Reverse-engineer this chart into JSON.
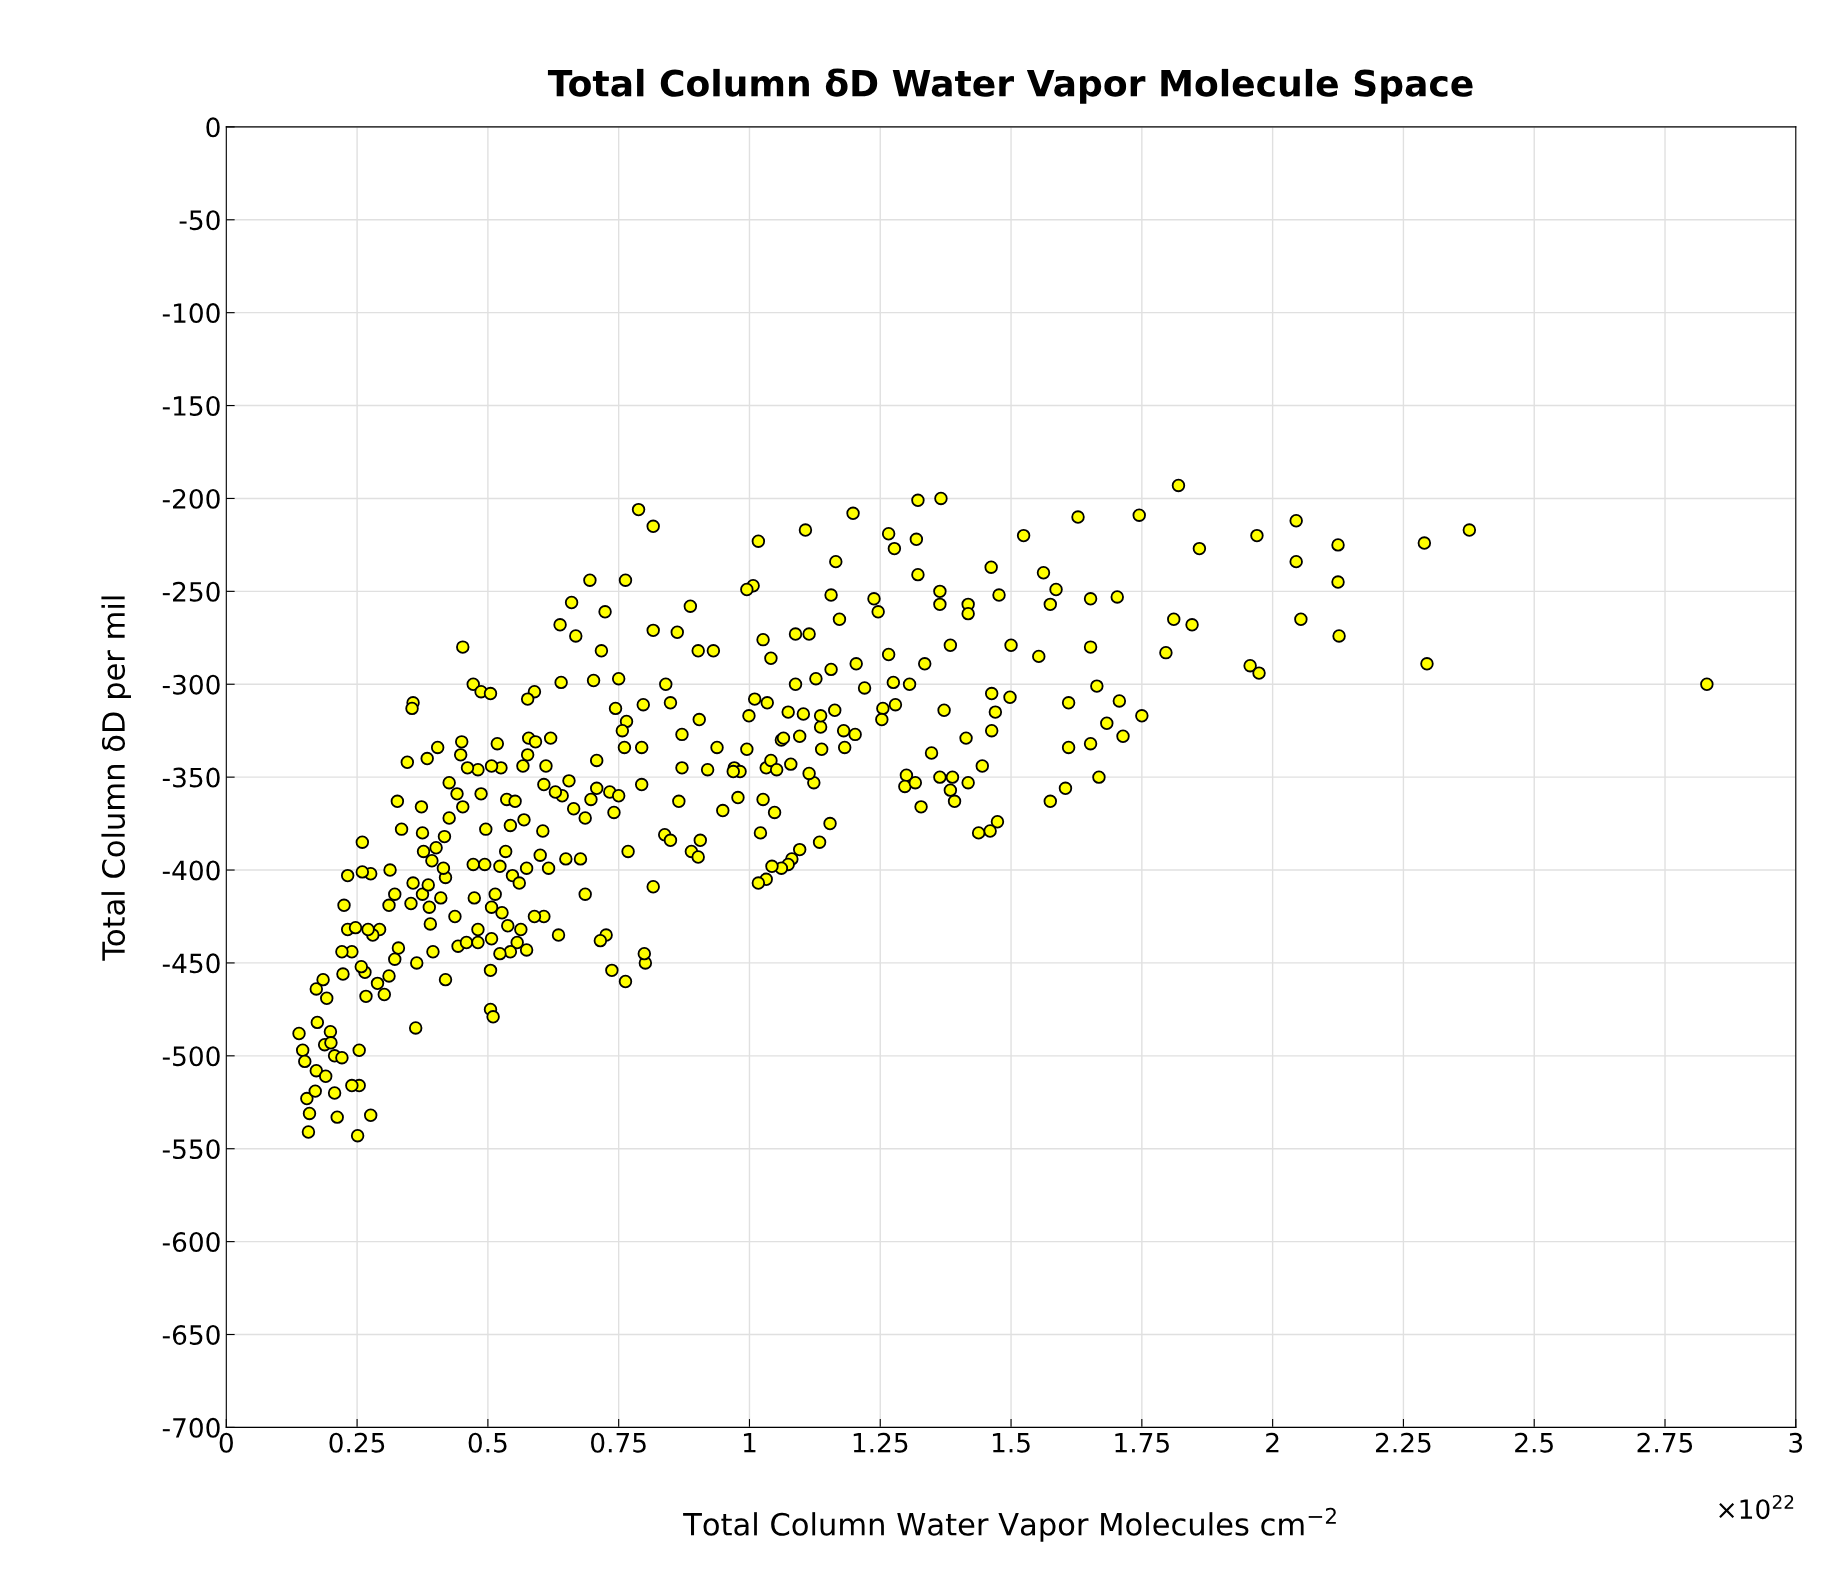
{
  "chart_data": {
    "type": "scatter",
    "title": "Total Column δD Water Vapor Molecule Space",
    "xlabel": "Total Column Water Vapor Molecules cm$^{−2}$",
    "ylabel": "Total Column δD per mil",
    "annotations": [
      "×10$^{22}$"
    ],
    "xlim": [
      0,
      3
    ],
    "ylim": [
      -700,
      0
    ],
    "xticks": [
      0,
      0.25,
      0.5,
      0.75,
      1,
      1.25,
      1.5,
      1.75,
      2,
      2.25,
      2.5,
      2.75,
      3
    ],
    "yticks": [
      -700,
      -650,
      -600,
      -550,
      -500,
      -450,
      -400,
      -350,
      -300,
      -250,
      -200,
      -150,
      -100,
      -50,
      0
    ],
    "grid": true,
    "marker": "circle",
    "series": [
      {
        "color": "#ffff00",
        "x": [
          2.83,
          2.376,
          2.29,
          2.295,
          2.125,
          2.125,
          2.127,
          2.045,
          2.045,
          2.054,
          1.97,
          1.957,
          1.974,
          1.82,
          1.86,
          1.811,
          1.846,
          1.796,
          1.745,
          1.75,
          1.703,
          1.707,
          1.714,
          1.683,
          1.628,
          1.652,
          1.652,
          1.664,
          1.61,
          1.61,
          1.652,
          1.668,
          1.604,
          1.575,
          1.562,
          1.586,
          1.575,
          1.553,
          1.524,
          1.5,
          1.498,
          1.462,
          1.477,
          1.463,
          1.47,
          1.463,
          1.474,
          1.46,
          1.438,
          1.445,
          1.418,
          1.418,
          1.414,
          1.418,
          1.392,
          1.364,
          1.364,
          1.366,
          1.322,
          1.319,
          1.322,
          1.335,
          1.372,
          1.384,
          1.364,
          1.388,
          1.384,
          1.348,
          1.328,
          1.3,
          1.297,
          1.317,
          1.266,
          1.277,
          1.266,
          1.275,
          1.306,
          1.279,
          1.255,
          1.238,
          1.246,
          1.253,
          1.22,
          1.204,
          1.198,
          1.165,
          1.156,
          1.172,
          1.156,
          1.163,
          1.18,
          1.182,
          1.138,
          1.136,
          1.154,
          1.134,
          1.123,
          1.127,
          1.107,
          1.114,
          1.088,
          1.103,
          1.096,
          1.114,
          1.096,
          1.081,
          1.074,
          1.061,
          1.088,
          1.074,
          1.061,
          1.032,
          1.043,
          1.032,
          1.017,
          1.021,
          1.017,
          1.007,
          0.995,
          1.026,
          1.041,
          1.034,
          1.01,
          0.999,
          0.971,
          0.982,
          0.995,
          0.902,
          0.931,
          0.887,
          0.904,
          0.92,
          0.889,
          0.902,
          0.906,
          0.871,
          0.865,
          0.862,
          0.84,
          0.838,
          0.849,
          0.816,
          0.801,
          0.799,
          0.788,
          0.816,
          0.816,
          0.797,
          0.794,
          0.761,
          0.75,
          0.763,
          0.765,
          0.768,
          0.763,
          0.737,
          0.726,
          0.715,
          0.741,
          0.702,
          0.695,
          0.724,
          0.717,
          0.668,
          0.66,
          0.708,
          0.686,
          0.686,
          0.677,
          0.649,
          0.635,
          0.642,
          0.64,
          0.638,
          0.62,
          0.607,
          0.589,
          0.576,
          0.6,
          0.607,
          0.589,
          0.574,
          0.556,
          0.543,
          0.523,
          0.527,
          0.507,
          0.505,
          0.505,
          0.51,
          0.452,
          0.472,
          0.487,
          0.505,
          0.518,
          0.525,
          0.357,
          0.355,
          0.346,
          0.327,
          0.335,
          0.357,
          0.375,
          0.364,
          0.362,
          0.313,
          0.293,
          0.265,
          0.267,
          0.24,
          0.232,
          0.26,
          0.276,
          0.192,
          0.172,
          0.185,
          0.157,
          0.139,
          0.146,
          0.15,
          0.154,
          0.17,
          0.172,
          0.199,
          0.207,
          0.207,
          0.212,
          0.251,
          0.276,
          0.254,
          0.254,
          0.24,
          0.221,
          0.19,
          0.188,
          0.174,
          0.159,
          0.2,
          0.223,
          0.221,
          0.232,
          0.225,
          0.247,
          0.258,
          0.28,
          0.26,
          0.271,
          0.289,
          0.302,
          0.311,
          0.322,
          0.329,
          0.311,
          0.322,
          0.353,
          0.386,
          0.395,
          0.39,
          0.41,
          0.419,
          0.437,
          0.419,
          0.443,
          0.459,
          0.481,
          0.481,
          0.472,
          0.494,
          0.496,
          0.487,
          0.481,
          0.461,
          0.448,
          0.45,
          0.441,
          0.452,
          0.426,
          0.417,
          0.401,
          0.393,
          0.377,
          0.375,
          0.373,
          0.404,
          0.384,
          0.426,
          0.415,
          0.388,
          0.507,
          0.536,
          0.543,
          0.534,
          0.547,
          0.56,
          0.552,
          0.567,
          0.576,
          0.578,
          0.591,
          0.611,
          0.569,
          0.574,
          0.605,
          0.616,
          0.563,
          0.538,
          0.507,
          0.514,
          0.474,
          0.523,
          0.629,
          0.655,
          0.664,
          0.697,
          0.708,
          0.733,
          0.75,
          0.744,
          0.757,
          0.794,
          0.849,
          0.871,
          0.938,
          0.949,
          0.978,
          0.969,
          1.041,
          1.079,
          1.052,
          1.026,
          1.048,
          1.065,
          1.136,
          1.202
        ],
        "values": [
          -300,
          -217,
          -224,
          -289,
          -225,
          -245,
          -274,
          -212,
          -234,
          -265,
          -220,
          -290,
          -294,
          -193,
          -227,
          -265,
          -268,
          -283,
          -209,
          -317,
          -253,
          -309,
          -328,
          -321,
          -210,
          -254,
          -280,
          -301,
          -310,
          -334,
          -332,
          -350,
          -356,
          -363,
          -240,
          -249,
          -257,
          -285,
          -220,
          -279,
          -307,
          -237,
          -252,
          -305,
          -315,
          -325,
          -374,
          -379,
          -380,
          -344,
          -257,
          -262,
          -329,
          -353,
          -363,
          -250,
          -257,
          -200,
          -201,
          -222,
          -241,
          -289,
          -314,
          -279,
          -350,
          -350,
          -357,
          -337,
          -366,
          -349,
          -355,
          -353,
          -219,
          -227,
          -284,
          -299,
          -300,
          -311,
          -313,
          -254,
          -261,
          -319,
          -302,
          -289,
          -208,
          -234,
          -252,
          -265,
          -292,
          -314,
          -325,
          -334,
          -335,
          -323,
          -375,
          -385,
          -353,
          -297,
          -217,
          -273,
          -273,
          -316,
          -328,
          -348,
          -389,
          -394,
          -397,
          -399,
          -300,
          -315,
          -330,
          -345,
          -398,
          -405,
          -407,
          -380,
          -223,
          -247,
          -249,
          -276,
          -286,
          -310,
          -308,
          -317,
          -345,
          -347,
          -335,
          -282,
          -282,
          -258,
          -319,
          -346,
          -390,
          -393,
          -384,
          -345,
          -363,
          -272,
          -300,
          -381,
          -384,
          -409,
          -450,
          -445,
          -206,
          -215,
          -271,
          -311,
          -334,
          -334,
          -297,
          -244,
          -320,
          -390,
          -460,
          -454,
          -435,
          -438,
          -369,
          -298,
          -244,
          -261,
          -282,
          -274,
          -256,
          -341,
          -372,
          -413,
          -394,
          -394,
          -435,
          -360,
          -299,
          -268,
          -329,
          -354,
          -304,
          -308,
          -392,
          -425,
          -425,
          -443,
          -439,
          -444,
          -445,
          -423,
          -437,
          -454,
          -475,
          -479,
          -280,
          -300,
          -304,
          -305,
          -332,
          -345,
          -310,
          -313,
          -342,
          -363,
          -378,
          -407,
          -413,
          -450,
          -485,
          -400,
          -432,
          -455,
          -468,
          -444,
          -403,
          -385,
          -402,
          -469,
          -464,
          -459,
          -541,
          -488,
          -497,
          -503,
          -523,
          -519,
          -508,
          -487,
          -500,
          -520,
          -533,
          -543,
          -532,
          -516,
          -497,
          -516,
          -501,
          -511,
          -494,
          -482,
          -531,
          -493,
          -456,
          -444,
          -432,
          -419,
          -431,
          -452,
          -435,
          -401,
          -432,
          -461,
          -467,
          -457,
          -448,
          -442,
          -419,
          -413,
          -418,
          -408,
          -444,
          -429,
          -415,
          -404,
          -425,
          -459,
          -441,
          -439,
          -439,
          -432,
          -397,
          -397,
          -378,
          -359,
          -346,
          -345,
          -338,
          -331,
          -359,
          -366,
          -372,
          -382,
          -388,
          -395,
          -390,
          -380,
          -366,
          -334,
          -340,
          -353,
          -399,
          -420,
          -344,
          -362,
          -376,
          -390,
          -403,
          -407,
          -363,
          -344,
          -338,
          -329,
          -331,
          -344,
          -373,
          -399,
          -379,
          -399,
          -432,
          -430,
          -420,
          -413,
          -415,
          -398,
          -358,
          -352,
          -367,
          -362,
          -356,
          -358,
          -360,
          -313,
          -325,
          -354,
          -310,
          -327,
          -334,
          -368,
          -361,
          -347,
          -341,
          -343,
          -346,
          -362,
          -369,
          -329,
          -317,
          -327
        ]
      }
    ]
  }
}
